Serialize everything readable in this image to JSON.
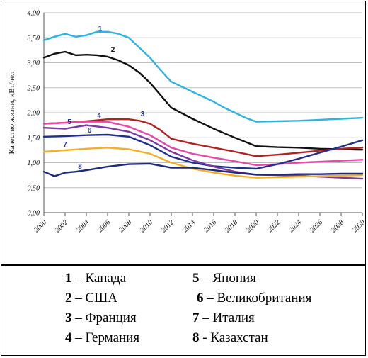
{
  "chart_data": {
    "type": "line",
    "ylabel": "Качество жизни, кВт/чел",
    "ylim": [
      0,
      4
    ],
    "yticks": [
      "0,00",
      "0,50",
      "1,00",
      "1,50",
      "2,00",
      "2,50",
      "3,00",
      "3,50",
      "4,00"
    ],
    "xticks": [
      "2000",
      "2002",
      "2004",
      "2006",
      "2008",
      "2010",
      "2012",
      "2014",
      "2016",
      "2018",
      "2020",
      "2022",
      "2024",
      "2026",
      "2028",
      "2030"
    ],
    "xlim": [
      2000,
      2030
    ],
    "grid": true,
    "series": [
      {
        "name": "1",
        "color": "#2fb3e0",
        "x": [
          2000,
          2001,
          2002,
          2003,
          2004,
          2005,
          2006,
          2007,
          2008,
          2009,
          2010,
          2011,
          2012,
          2013,
          2014,
          2015,
          2016,
          2017,
          2018,
          2019,
          2020,
          2022,
          2024,
          2026,
          2028,
          2030
        ],
        "y": [
          3.45,
          3.52,
          3.58,
          3.52,
          3.55,
          3.62,
          3.62,
          3.58,
          3.5,
          3.3,
          3.1,
          2.85,
          2.62,
          2.52,
          2.42,
          2.32,
          2.22,
          2.1,
          2.0,
          1.9,
          1.82,
          1.83,
          1.84,
          1.86,
          1.88,
          1.9
        ]
      },
      {
        "name": "2",
        "color": "#111111",
        "x": [
          2000,
          2001,
          2002,
          2003,
          2004,
          2005,
          2006,
          2007,
          2008,
          2009,
          2010,
          2011,
          2012,
          2014,
          2016,
          2018,
          2020,
          2022,
          2024,
          2026,
          2028,
          2030
        ],
        "y": [
          3.1,
          3.18,
          3.22,
          3.15,
          3.16,
          3.15,
          3.12,
          3.05,
          2.95,
          2.8,
          2.6,
          2.35,
          2.1,
          1.88,
          1.68,
          1.5,
          1.33,
          1.31,
          1.3,
          1.28,
          1.27,
          1.26
        ]
      },
      {
        "name": "3",
        "color": "#b22222",
        "x": [
          2000,
          2002,
          2004,
          2006,
          2008,
          2009,
          2010,
          2011,
          2012,
          2014,
          2016,
          2018,
          2020,
          2022,
          2024,
          2026,
          2028,
          2030
        ],
        "y": [
          1.78,
          1.8,
          1.83,
          1.87,
          1.87,
          1.84,
          1.78,
          1.65,
          1.48,
          1.38,
          1.3,
          1.22,
          1.13,
          1.16,
          1.2,
          1.24,
          1.28,
          1.3
        ]
      },
      {
        "name": "4",
        "color": "#e64aa8",
        "x": [
          2000,
          2002,
          2004,
          2006,
          2008,
          2010,
          2012,
          2014,
          2016,
          2018,
          2020,
          2022,
          2024,
          2026,
          2028,
          2030
        ],
        "y": [
          1.78,
          1.8,
          1.82,
          1.82,
          1.72,
          1.55,
          1.3,
          1.18,
          1.1,
          1.03,
          0.95,
          0.97,
          1.0,
          1.02,
          1.04,
          1.06
        ]
      },
      {
        "name": "5",
        "color": "#1f2f8f",
        "x": [
          2000,
          2002,
          2004,
          2006,
          2008,
          2010,
          2012,
          2014,
          2016,
          2018,
          2020,
          2022,
          2024,
          2026,
          2028,
          2030
        ],
        "y": [
          1.52,
          1.53,
          1.55,
          1.56,
          1.52,
          1.35,
          1.12,
          1.0,
          0.93,
          0.9,
          0.88,
          0.97,
          1.08,
          1.2,
          1.32,
          1.45
        ]
      },
      {
        "name": "6",
        "color": "#7a3aa0",
        "x": [
          2000,
          2002,
          2004,
          2006,
          2008,
          2010,
          2012,
          2014,
          2016,
          2018,
          2020,
          2022,
          2024,
          2026,
          2028,
          2030
        ],
        "y": [
          1.7,
          1.68,
          1.75,
          1.7,
          1.62,
          1.45,
          1.22,
          1.05,
          0.92,
          0.82,
          0.76,
          0.75,
          0.74,
          0.72,
          0.7,
          0.68
        ]
      },
      {
        "name": "7",
        "color": "#f5b021",
        "x": [
          2000,
          2002,
          2004,
          2006,
          2008,
          2010,
          2012,
          2014,
          2016,
          2018,
          2020,
          2022,
          2024,
          2026,
          2028,
          2030
        ],
        "y": [
          1.22,
          1.25,
          1.28,
          1.3,
          1.27,
          1.18,
          1.0,
          0.88,
          0.8,
          0.74,
          0.7,
          0.71,
          0.72,
          0.73,
          0.74,
          0.75
        ]
      },
      {
        "name": "8",
        "color": "#1e2a78",
        "x": [
          2000,
          2001,
          2002,
          2003,
          2004,
          2006,
          2008,
          2010,
          2012,
          2014,
          2016,
          2018,
          2020,
          2022,
          2024,
          2026,
          2028,
          2030
        ],
        "y": [
          0.82,
          0.73,
          0.8,
          0.82,
          0.85,
          0.92,
          0.97,
          0.98,
          0.9,
          0.9,
          0.85,
          0.8,
          0.76,
          0.76,
          0.77,
          0.77,
          0.78,
          0.78
        ]
      }
    ],
    "series_labels": [
      {
        "text": "1",
        "x": 2005.3,
        "y": 3.64,
        "color": "#1f2f8f"
      },
      {
        "text": "2",
        "x": 2006.5,
        "y": 3.22,
        "color": "#111111"
      },
      {
        "text": "3",
        "x": 2009.3,
        "y": 1.93,
        "color": "#1f2f8f"
      },
      {
        "text": "4",
        "x": 2005.2,
        "y": 1.9,
        "color": "#1f2f8f"
      },
      {
        "text": "5",
        "x": 2002.4,
        "y": 1.77,
        "color": "#1f2f8f"
      },
      {
        "text": "6",
        "x": 2004.3,
        "y": 1.6,
        "color": "#1f2f8f"
      },
      {
        "text": "7",
        "x": 2002.0,
        "y": 1.32,
        "color": "#1f2f8f"
      },
      {
        "text": "8",
        "x": 2003.4,
        "y": 0.88,
        "color": "#1f2f8f"
      }
    ]
  },
  "legend": [
    {
      "num": "1",
      "text": " – Канада"
    },
    {
      "num": "5",
      "text": " – Япония"
    },
    {
      "num": "2",
      "text": " – США"
    },
    {
      "num": "6",
      "text": " – Великобритания"
    },
    {
      "num": "3",
      "text": " – Франция"
    },
    {
      "num": "7",
      "text": " – Италия"
    },
    {
      "num": "4",
      "text": " – Германия"
    },
    {
      "num": "8",
      "text": " - Казахстан"
    }
  ]
}
